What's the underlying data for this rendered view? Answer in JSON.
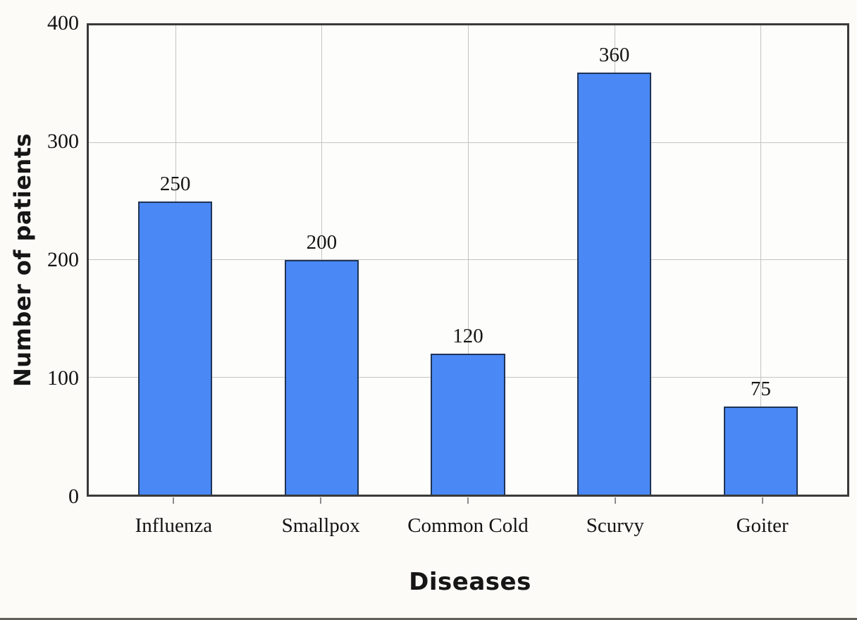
{
  "chart_data": {
    "type": "bar",
    "title": "",
    "categories": [
      "Influenza",
      "Smallpox",
      "Common Cold",
      "Scurvy",
      "Goiter"
    ],
    "values": [
      250,
      200,
      120,
      360,
      75
    ],
    "bar_labels": [
      "250",
      "200",
      "120",
      "360",
      "75"
    ],
    "xlabel": "Diseases",
    "ylabel": "Number of patients",
    "ylim": [
      0,
      400
    ],
    "yticks": [
      0,
      100,
      200,
      300,
      400
    ],
    "grid": true,
    "legend_position": "none",
    "bar_color": "#4a88f5",
    "bar_border_color": "#1f3455",
    "gridline_color": "#c4c4c4",
    "frame_color": "#3a3a3a",
    "background_color": "#fcfbf8"
  }
}
